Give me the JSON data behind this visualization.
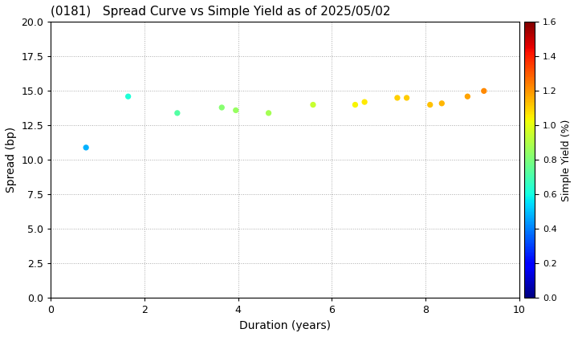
{
  "title": "(0181)   Spread Curve vs Simple Yield as of 2025/05/02",
  "xlabel": "Duration (years)",
  "ylabel": "Spread (bp)",
  "colorbar_label": "Simple Yield (%)",
  "xlim": [
    0,
    10
  ],
  "ylim": [
    0.0,
    20.0
  ],
  "yticks": [
    0.0,
    2.5,
    5.0,
    7.5,
    10.0,
    12.5,
    15.0,
    17.5,
    20.0
  ],
  "xticks": [
    0,
    2,
    4,
    6,
    8,
    10
  ],
  "colorbar_min": 0.0,
  "colorbar_max": 1.6,
  "colorbar_ticks": [
    0.0,
    0.2,
    0.4,
    0.6,
    0.8,
    1.0,
    1.2,
    1.4,
    1.6
  ],
  "points": [
    {
      "duration": 0.75,
      "spread": 10.9,
      "simple_yield": 0.48
    },
    {
      "duration": 1.65,
      "spread": 14.6,
      "simple_yield": 0.62
    },
    {
      "duration": 2.7,
      "spread": 13.4,
      "simple_yield": 0.72
    },
    {
      "duration": 3.65,
      "spread": 13.8,
      "simple_yield": 0.82
    },
    {
      "duration": 3.95,
      "spread": 13.6,
      "simple_yield": 0.85
    },
    {
      "duration": 4.65,
      "spread": 13.4,
      "simple_yield": 0.88
    },
    {
      "duration": 5.6,
      "spread": 14.0,
      "simple_yield": 0.95
    },
    {
      "duration": 6.5,
      "spread": 14.0,
      "simple_yield": 1.04
    },
    {
      "duration": 6.7,
      "spread": 14.2,
      "simple_yield": 1.06
    },
    {
      "duration": 7.4,
      "spread": 14.5,
      "simple_yield": 1.1
    },
    {
      "duration": 7.6,
      "spread": 14.5,
      "simple_yield": 1.11
    },
    {
      "duration": 8.1,
      "spread": 14.0,
      "simple_yield": 1.13
    },
    {
      "duration": 8.35,
      "spread": 14.1,
      "simple_yield": 1.15
    },
    {
      "duration": 8.9,
      "spread": 14.6,
      "simple_yield": 1.18
    },
    {
      "duration": 9.25,
      "spread": 15.0,
      "simple_yield": 1.22
    }
  ],
  "marker_size": 18,
  "background_color": "#ffffff",
  "grid_color": "#aaaaaa",
  "grid_linestyle": ":",
  "colormap": "jet",
  "title_fontsize": 11,
  "axis_label_fontsize": 10,
  "tick_fontsize": 9,
  "colorbar_label_fontsize": 9,
  "colorbar_tick_fontsize": 8
}
